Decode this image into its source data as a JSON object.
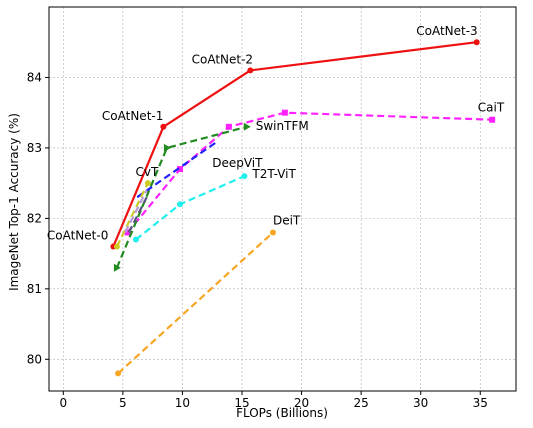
{
  "chart_data": {
    "type": "line",
    "title": "",
    "xlabel": "FLOPs (Billions)",
    "ylabel": "ImageNet Top-1 Accuracy (%)",
    "xlim": [
      -1.2,
      38
    ],
    "ylim": [
      79.55,
      85.0
    ],
    "xticks": [
      0,
      5,
      10,
      15,
      20,
      25,
      30,
      35
    ],
    "yticks": [
      80,
      81,
      82,
      83,
      84
    ],
    "grid": true,
    "colors": {
      "CoAtNet": "#ee1111",
      "CaiT": "#ff22ff",
      "SwinTFM": "#228b22",
      "DeepViT": "#2222ff",
      "CvT": "#cccc22",
      "T2T-ViT": "#22eeee",
      "DeiT": "#f5a623",
      "extra_light": "#bb99dd",
      "extra_dark": "#555577"
    },
    "series": [
      {
        "key": "CoAtNet",
        "x": [
          4.2,
          8.4,
          15.7,
          34.7
        ],
        "y": [
          81.6,
          83.3,
          84.1,
          84.5
        ],
        "marker": "circle",
        "dash": "solid"
      },
      {
        "key": "CaiT",
        "x": [
          5.4,
          9.8,
          13.9,
          18.6,
          36.0
        ],
        "y": [
          81.8,
          82.7,
          83.3,
          83.5,
          83.4
        ],
        "marker": "square",
        "dash": "dashed"
      },
      {
        "key": "SwinTFM",
        "x": [
          4.5,
          8.7,
          15.4
        ],
        "y": [
          81.3,
          83.0,
          83.3
        ],
        "marker": "triangle-right",
        "dash": "dashed"
      },
      {
        "key": "DeepViT",
        "x": [
          6.2,
          13.0
        ],
        "y": [
          82.3,
          83.1
        ],
        "marker": "none",
        "dash": "dashed"
      },
      {
        "key": "CvT",
        "x": [
          4.5,
          7.1
        ],
        "y": [
          81.6,
          82.5
        ],
        "marker": "circle",
        "dash": "dashed"
      },
      {
        "key": "T2T-ViT",
        "x": [
          6.1,
          9.8,
          15.2
        ],
        "y": [
          81.7,
          82.2,
          82.6
        ],
        "marker": "circle",
        "dash": "dashed"
      },
      {
        "key": "DeiT",
        "x": [
          4.6,
          17.6
        ],
        "y": [
          79.8,
          81.8
        ],
        "marker": "circle",
        "dash": "dashed"
      },
      {
        "key": "extra_light",
        "x": [
          5.2,
          7.0
        ],
        "y": [
          81.8,
          82.4
        ],
        "marker": "none",
        "dash": "dashed"
      },
      {
        "key": "extra_dark",
        "x": [
          5.5,
          7.0
        ],
        "y": [
          81.8,
          82.3
        ],
        "marker": "none",
        "dash": "dashed"
      }
    ],
    "labels": [
      {
        "text": "CoAtNet-0",
        "x": 4.2,
        "y": 81.6,
        "anchor": "end",
        "dx": -5,
        "dy": -7
      },
      {
        "text": "CoAtNet-1",
        "x": 8.4,
        "y": 83.3,
        "anchor": "end",
        "dx": 0,
        "dy": -7
      },
      {
        "text": "CoAtNet-2",
        "x": 15.7,
        "y": 84.1,
        "anchor": "middle",
        "dx": -28,
        "dy": -7
      },
      {
        "text": "CoAtNet-3",
        "x": 34.7,
        "y": 84.5,
        "anchor": "end",
        "dx": 1,
        "dy": -7
      },
      {
        "text": "CaiT",
        "x": 36.0,
        "y": 83.4,
        "anchor": "end",
        "dx": 12,
        "dy": -8
      },
      {
        "text": "SwinTFM",
        "x": 15.4,
        "y": 83.3,
        "anchor": "start",
        "dx": 9,
        "dy": 3
      },
      {
        "text": "DeepViT",
        "x": 12.5,
        "y": 83.0,
        "anchor": "start",
        "dx": 0,
        "dy": 19
      },
      {
        "text": "CvT",
        "x": 7.1,
        "y": 82.5,
        "anchor": "middle",
        "dx": -1,
        "dy": -7
      },
      {
        "text": "T2T-ViT",
        "x": 15.2,
        "y": 82.6,
        "anchor": "start",
        "dx": 8,
        "dy": 2
      },
      {
        "text": "DeiT",
        "x": 17.6,
        "y": 81.8,
        "anchor": "start",
        "dx": 0,
        "dy": -8
      }
    ]
  }
}
